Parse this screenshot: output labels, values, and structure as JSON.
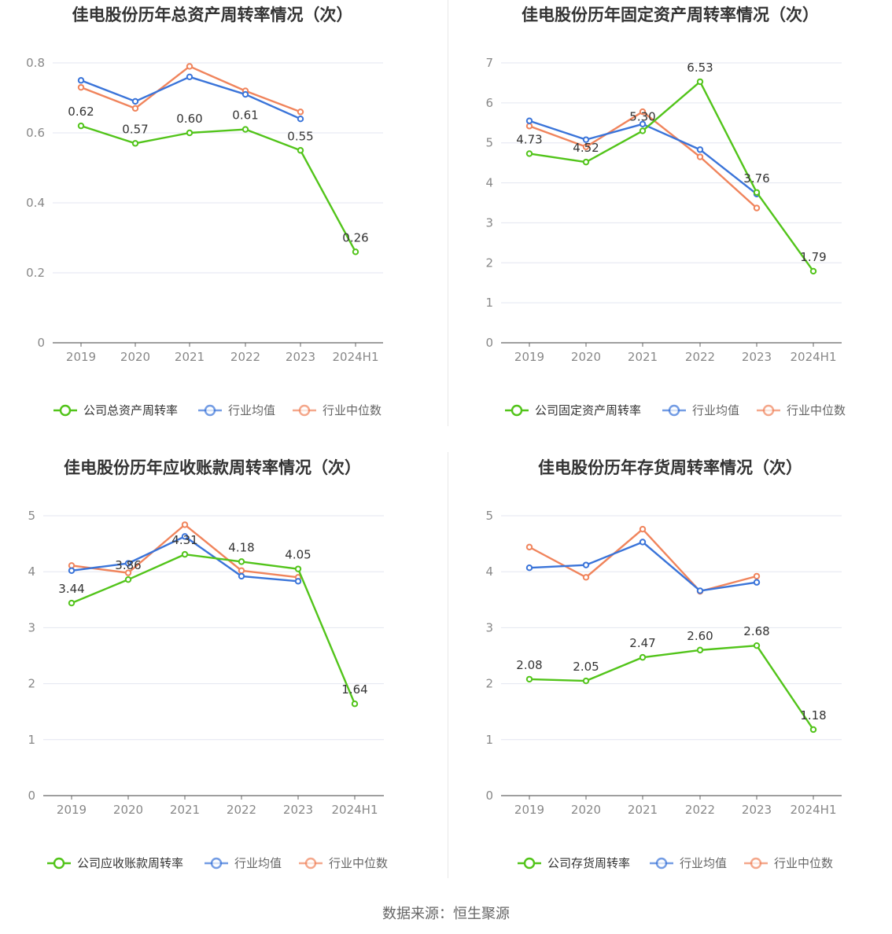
{
  "source_label": "数据来源：恒生聚源",
  "colors": {
    "company": "#52c41a",
    "avg": "#3a74d9",
    "median": "#f0845c",
    "grid": "#e3e6f0",
    "axis": "#666666",
    "text": "#333333",
    "tick": "#888888"
  },
  "chart_data": [
    {
      "type": "line",
      "title": "佳电股份历年总资产周转率情况（次）",
      "categories": [
        "2019",
        "2020",
        "2021",
        "2022",
        "2023",
        "2024H1"
      ],
      "y_ticks": [
        "0",
        "0.2",
        "0.4",
        "0.6",
        "0.8"
      ],
      "ylim": [
        0,
        0.8
      ],
      "series": [
        {
          "name": "公司总资产周转率",
          "values": [
            0.62,
            0.57,
            0.6,
            0.61,
            0.55,
            0.26
          ],
          "labels": [
            "0.62",
            "0.57",
            "0.60",
            "0.61",
            "0.55",
            "0.26"
          ]
        },
        {
          "name": "行业均值",
          "values": [
            0.75,
            0.69,
            0.76,
            0.71,
            0.64,
            null
          ]
        },
        {
          "name": "行业中位数",
          "values": [
            0.73,
            0.67,
            0.79,
            0.72,
            0.66,
            null
          ]
        }
      ]
    },
    {
      "type": "line",
      "title": "佳电股份历年固定资产周转率情况（次）",
      "categories": [
        "2019",
        "2020",
        "2021",
        "2022",
        "2023",
        "2024H1"
      ],
      "y_ticks": [
        "0",
        "1",
        "2",
        "3",
        "4",
        "5",
        "6",
        "7"
      ],
      "ylim": [
        0,
        7
      ],
      "series": [
        {
          "name": "公司固定资产周转率",
          "values": [
            4.73,
            4.52,
            5.3,
            6.53,
            3.76,
            1.79
          ],
          "labels": [
            "4.73",
            "4.52",
            "5.30",
            "6.53",
            "3.76",
            "1.79"
          ]
        },
        {
          "name": "行业均值",
          "values": [
            5.55,
            5.08,
            5.47,
            4.83,
            3.72,
            null
          ]
        },
        {
          "name": "行业中位数",
          "values": [
            5.42,
            4.9,
            5.78,
            4.65,
            3.37,
            null
          ]
        }
      ]
    },
    {
      "type": "line",
      "title": "佳电股份历年应收账款周转率情况（次）",
      "categories": [
        "2019",
        "2020",
        "2021",
        "2022",
        "2023",
        "2024H1"
      ],
      "y_ticks": [
        "0",
        "1",
        "2",
        "3",
        "4",
        "5"
      ],
      "ylim": [
        0,
        5
      ],
      "series": [
        {
          "name": "公司应收账款周转率",
          "values": [
            3.44,
            3.86,
            4.31,
            4.18,
            4.05,
            1.64
          ],
          "labels": [
            "3.44",
            "3.86",
            "4.31",
            "4.18",
            "4.05",
            "1.64"
          ]
        },
        {
          "name": "行业均值",
          "values": [
            4.02,
            4.15,
            4.63,
            3.92,
            3.83,
            null
          ]
        },
        {
          "name": "行业中位数",
          "values": [
            4.11,
            3.98,
            4.84,
            4.02,
            3.9,
            null
          ]
        }
      ]
    },
    {
      "type": "line",
      "title": "佳电股份历年存货周转率情况（次）",
      "categories": [
        "2019",
        "2020",
        "2021",
        "2022",
        "2023",
        "2024H1"
      ],
      "y_ticks": [
        "0",
        "1",
        "2",
        "3",
        "4",
        "5"
      ],
      "ylim": [
        0,
        5
      ],
      "series": [
        {
          "name": "公司存货周转率",
          "values": [
            2.08,
            2.05,
            2.47,
            2.6,
            2.68,
            1.18
          ],
          "labels": [
            "2.08",
            "2.05",
            "2.47",
            "2.60",
            "2.68",
            "1.18"
          ]
        },
        {
          "name": "行业均值",
          "values": [
            4.07,
            4.12,
            4.53,
            3.66,
            3.81,
            null
          ]
        },
        {
          "name": "行业中位数",
          "values": [
            4.44,
            3.9,
            4.76,
            3.65,
            3.92,
            null
          ]
        }
      ]
    }
  ]
}
